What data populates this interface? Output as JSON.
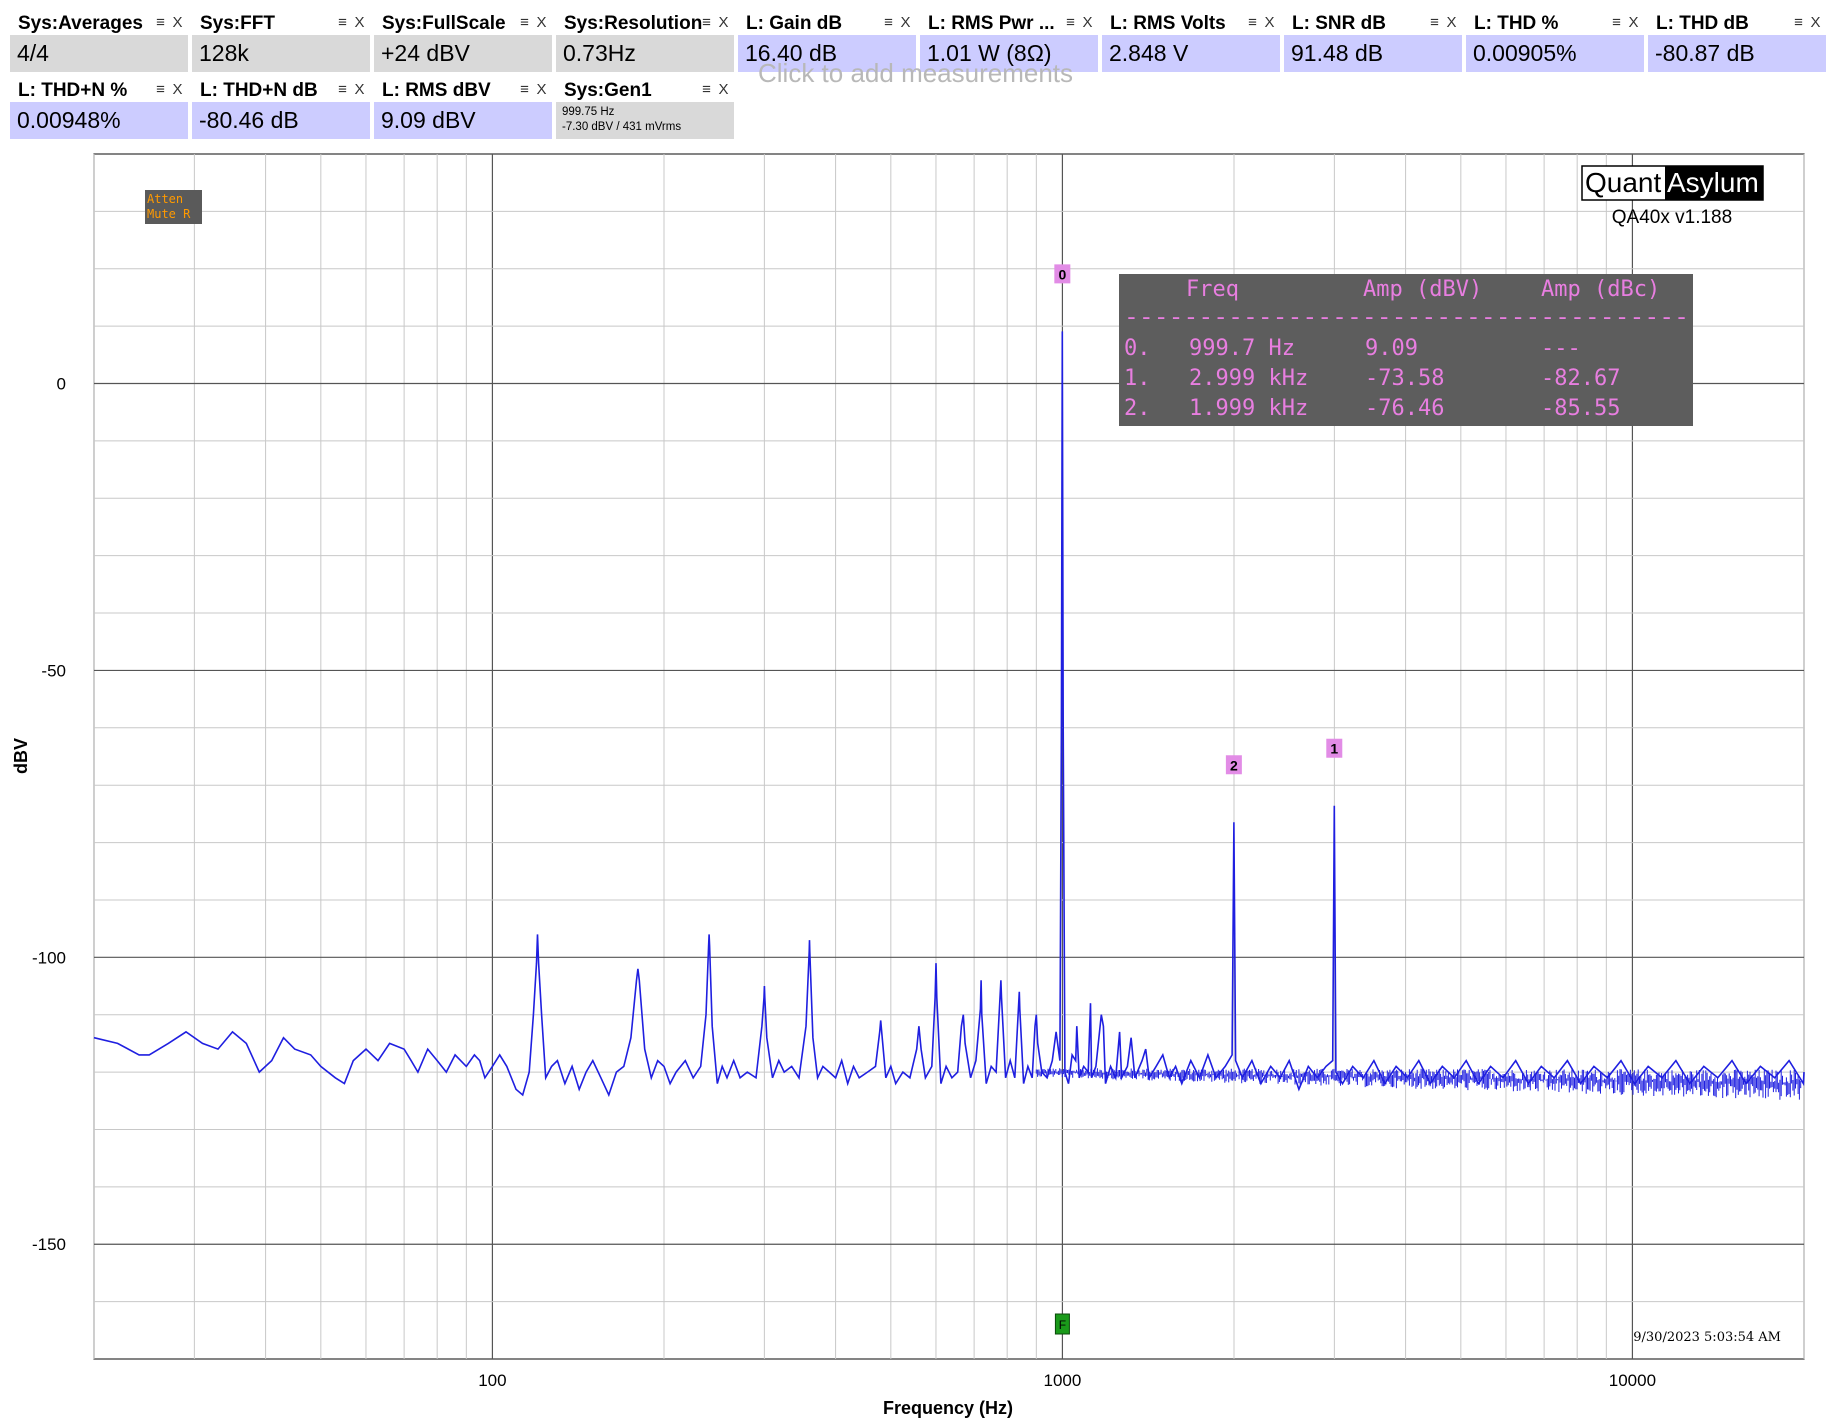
{
  "tiles": [
    {
      "title": "Sys:Averages",
      "value": "4/4",
      "kind": "sys"
    },
    {
      "title": "Sys:FFT",
      "value": "128k",
      "kind": "sys"
    },
    {
      "title": "Sys:FullScale",
      "value": "+24 dBV",
      "kind": "sys"
    },
    {
      "title": "Sys:Resolution",
      "value": "0.73Hz",
      "kind": "sys"
    },
    {
      "title": "L: Gain dB",
      "value": "16.40 dB",
      "kind": "meas"
    },
    {
      "title": "L: RMS Pwr ...",
      "value": "1.01 W (8Ω)",
      "kind": "meas"
    },
    {
      "title": "L: RMS Volts",
      "value": "2.848 V",
      "kind": "meas"
    },
    {
      "title": "L: SNR dB",
      "value": "91.48 dB",
      "kind": "meas"
    },
    {
      "title": "L: THD %",
      "value": "0.00905%",
      "kind": "meas"
    },
    {
      "title": "L: THD dB",
      "value": "-80.87 dB",
      "kind": "meas"
    },
    {
      "title": "L: THD+N %",
      "value": "0.00948%",
      "kind": "meas"
    },
    {
      "title": "L: THD+N dB",
      "value": "-80.46 dB",
      "kind": "meas"
    },
    {
      "title": "L: RMS dBV",
      "value": "9.09 dBV",
      "kind": "meas"
    },
    {
      "title": "Sys:Gen1",
      "value": "",
      "kind": "sys",
      "sub1": "999.75 Hz",
      "sub2": "-7.30 dBV  / 431 mVrms"
    }
  ],
  "tile_icons": {
    "menu": "menu-icon",
    "close": "close-icon"
  },
  "add_measurement_hint": "Click to add measurements",
  "colors": {
    "trace": "#1f1fe0",
    "marker_bg": "#e28ce6",
    "table_bg": "#5d5d5d",
    "table_text": "#e87ee0",
    "sys_tile": "#d9d9d9",
    "meas_tile": "#ccccff",
    "grid": "#c8c8c8",
    "grid_major": "#555555",
    "atten_bg": "#5a5a5a",
    "atten_text": "#ff9a00",
    "fund_marker": "#1a9a1a"
  },
  "atten_badge": {
    "line1": "Atten",
    "line2": "Mute R"
  },
  "brand": {
    "quant": "Quant",
    "asylum": "Asylum",
    "version": "QA40x v1.188"
  },
  "timestamp": "9/30/2023 5:03:54 AM",
  "harmonic_table": {
    "headers": [
      "Freq",
      "Amp (dBV)",
      "Amp (dBc)"
    ],
    "divider": "--------------------------------------",
    "rows": [
      {
        "idx": "0.",
        "freq": "999.7 Hz",
        "dbv": "9.09",
        "dbc": "---"
      },
      {
        "idx": "1.",
        "freq": "2.999 kHz",
        "dbv": "-73.58",
        "dbc": "-82.67"
      },
      {
        "idx": "2.",
        "freq": "1.999 kHz",
        "dbv": "-76.46",
        "dbc": "-85.55"
      }
    ]
  },
  "chart_data": {
    "type": "line",
    "xlabel": "Frequency (Hz)",
    "ylabel": "dBV",
    "x_scale": "log",
    "xlim": [
      20,
      20000
    ],
    "ylim": [
      -170,
      40
    ],
    "y_ticks": [
      0,
      -50,
      -100,
      -150
    ],
    "y_tick_labels": [
      "0",
      "-50",
      "-100",
      "-150"
    ],
    "x_ticks": [
      100,
      1000,
      10000
    ],
    "x_tick_labels": [
      "100",
      "1000",
      "10000"
    ],
    "grid": true,
    "series": [
      {
        "points": [
          [
            20,
            -114
          ],
          [
            22,
            -115
          ],
          [
            24,
            -117
          ],
          [
            25,
            -117
          ],
          [
            27,
            -115
          ],
          [
            29,
            -113
          ],
          [
            31,
            -115
          ],
          [
            33,
            -116
          ],
          [
            35,
            -113
          ],
          [
            37,
            -115
          ],
          [
            39,
            -120
          ],
          [
            41,
            -118
          ],
          [
            43,
            -114
          ],
          [
            45,
            -116
          ],
          [
            48,
            -117
          ],
          [
            50,
            -119
          ],
          [
            53,
            -121
          ],
          [
            55,
            -122
          ],
          [
            57,
            -118
          ],
          [
            60,
            -116
          ],
          [
            63,
            -118
          ],
          [
            66,
            -115
          ],
          [
            70,
            -116
          ],
          [
            72,
            -118
          ],
          [
            74,
            -120
          ],
          [
            77,
            -116
          ],
          [
            80,
            -118
          ],
          [
            83,
            -120
          ],
          [
            86,
            -117
          ],
          [
            90,
            -119
          ],
          [
            93,
            -117
          ],
          [
            95,
            -118
          ],
          [
            97,
            -121
          ],
          [
            100,
            -119
          ],
          [
            103,
            -117
          ],
          [
            106,
            -119
          ],
          [
            110,
            -123
          ],
          [
            113,
            -124
          ],
          [
            116,
            -120
          ],
          [
            118,
            -110
          ],
          [
            119.5,
            -101
          ],
          [
            120,
            -96
          ],
          [
            120.5,
            -101
          ],
          [
            122,
            -110
          ],
          [
            124,
            -121
          ],
          [
            127,
            -119
          ],
          [
            130,
            -118
          ],
          [
            134,
            -122
          ],
          [
            138,
            -119
          ],
          [
            142,
            -123
          ],
          [
            146,
            -120
          ],
          [
            150,
            -118
          ],
          [
            155,
            -121
          ],
          [
            160,
            -124
          ],
          [
            165,
            -120
          ],
          [
            170,
            -119
          ],
          [
            175,
            -114
          ],
          [
            179,
            -104
          ],
          [
            180,
            -102
          ],
          [
            181,
            -104
          ],
          [
            185,
            -116
          ],
          [
            190,
            -121
          ],
          [
            195,
            -118
          ],
          [
            200,
            -119
          ],
          [
            205,
            -122
          ],
          [
            210,
            -120
          ],
          [
            218,
            -118
          ],
          [
            225,
            -121
          ],
          [
            232,
            -119
          ],
          [
            237,
            -110
          ],
          [
            239.5,
            -98
          ],
          [
            240,
            -96
          ],
          [
            240.5,
            -98
          ],
          [
            243,
            -112
          ],
          [
            248,
            -122
          ],
          [
            253,
            -119
          ],
          [
            258,
            -121
          ],
          [
            265,
            -118
          ],
          [
            272,
            -121
          ],
          [
            280,
            -120
          ],
          [
            290,
            -121
          ],
          [
            297,
            -112
          ],
          [
            299.5,
            -107
          ],
          [
            300,
            -105
          ],
          [
            300.5,
            -107
          ],
          [
            303,
            -114
          ],
          [
            310,
            -121
          ],
          [
            318,
            -118
          ],
          [
            325,
            -120
          ],
          [
            335,
            -119
          ],
          [
            345,
            -121
          ],
          [
            355,
            -112
          ],
          [
            359.5,
            -99
          ],
          [
            360,
            -97
          ],
          [
            360.5,
            -99
          ],
          [
            365,
            -114
          ],
          [
            372,
            -121
          ],
          [
            380,
            -119
          ],
          [
            390,
            -120
          ],
          [
            400,
            -121
          ],
          [
            410,
            -118
          ],
          [
            420,
            -122
          ],
          [
            430,
            -119
          ],
          [
            440,
            -121
          ],
          [
            455,
            -120
          ],
          [
            470,
            -119
          ],
          [
            478,
            -113
          ],
          [
            480,
            -111
          ],
          [
            482,
            -113
          ],
          [
            490,
            -121
          ],
          [
            500,
            -119
          ],
          [
            510,
            -122
          ],
          [
            525,
            -120
          ],
          [
            540,
            -121
          ],
          [
            555,
            -116
          ],
          [
            560,
            -112
          ],
          [
            565,
            -116
          ],
          [
            575,
            -121
          ],
          [
            590,
            -119
          ],
          [
            598,
            -107
          ],
          [
            600,
            -101
          ],
          [
            602,
            -107
          ],
          [
            612,
            -122
          ],
          [
            625,
            -119
          ],
          [
            640,
            -121
          ],
          [
            655,
            -120
          ],
          [
            665,
            -112
          ],
          [
            670,
            -110
          ],
          [
            675,
            -115
          ],
          [
            690,
            -121
          ],
          [
            705,
            -118
          ],
          [
            718,
            -109
          ],
          [
            720,
            -104
          ],
          [
            722,
            -110
          ],
          [
            735,
            -122
          ],
          [
            750,
            -119
          ],
          [
            765,
            -120
          ],
          [
            778,
            -106
          ],
          [
            780,
            -104
          ],
          [
            782,
            -107
          ],
          [
            795,
            -121
          ],
          [
            810,
            -118
          ],
          [
            825,
            -121
          ],
          [
            838,
            -108
          ],
          [
            840,
            -106
          ],
          [
            842,
            -109
          ],
          [
            855,
            -122
          ],
          [
            870,
            -119
          ],
          [
            885,
            -121
          ],
          [
            895,
            -112
          ],
          [
            900,
            -110
          ],
          [
            905,
            -115
          ],
          [
            920,
            -120
          ],
          [
            940,
            -121
          ],
          [
            960,
            -118
          ],
          [
            975,
            -113
          ],
          [
            990,
            -118
          ],
          [
            996,
            -60
          ],
          [
            999.7,
            9.09
          ],
          [
            1003,
            -60
          ],
          [
            1010,
            -120
          ],
          [
            1025,
            -122
          ],
          [
            1040,
            -117
          ],
          [
            1055,
            -118
          ],
          [
            1060,
            -112
          ],
          [
            1070,
            -121
          ],
          [
            1090,
            -119
          ],
          [
            1110,
            -120
          ],
          [
            1120,
            -108
          ],
          [
            1125,
            -121
          ],
          [
            1145,
            -119
          ],
          [
            1170,
            -110
          ],
          [
            1180,
            -112
          ],
          [
            1190,
            -122
          ],
          [
            1215,
            -119
          ],
          [
            1240,
            -121
          ],
          [
            1260,
            -113
          ],
          [
            1270,
            -121
          ],
          [
            1300,
            -119
          ],
          [
            1320,
            -114
          ],
          [
            1340,
            -121
          ],
          [
            1380,
            -118
          ],
          [
            1400,
            -116
          ],
          [
            1420,
            -121
          ],
          [
            1460,
            -119
          ],
          [
            1500,
            -117
          ],
          [
            1540,
            -121
          ],
          [
            1580,
            -119
          ],
          [
            1620,
            -122
          ],
          [
            1680,
            -118
          ],
          [
            1740,
            -121
          ],
          [
            1800,
            -117
          ],
          [
            1860,
            -121
          ],
          [
            1930,
            -119
          ],
          [
            1985,
            -117
          ],
          [
            1999,
            -76.46
          ],
          [
            2013,
            -118
          ],
          [
            2070,
            -121
          ],
          [
            2150,
            -118
          ],
          [
            2230,
            -122
          ],
          [
            2320,
            -119
          ],
          [
            2410,
            -121
          ],
          [
            2500,
            -118
          ],
          [
            2600,
            -123
          ],
          [
            2700,
            -119
          ],
          [
            2800,
            -121
          ],
          [
            2900,
            -119
          ],
          [
            2980,
            -118
          ],
          [
            2999,
            -73.58
          ],
          [
            3018,
            -120
          ],
          [
            3100,
            -122
          ],
          [
            3230,
            -119
          ],
          [
            3370,
            -121
          ],
          [
            3520,
            -118
          ],
          [
            3680,
            -122
          ],
          [
            3850,
            -119
          ],
          [
            4030,
            -121
          ],
          [
            4220,
            -118
          ],
          [
            4420,
            -122
          ],
          [
            4640,
            -119
          ],
          [
            4870,
            -121
          ],
          [
            5110,
            -118
          ],
          [
            5370,
            -122
          ],
          [
            5640,
            -119
          ],
          [
            5930,
            -121
          ],
          [
            6240,
            -118
          ],
          [
            6570,
            -122
          ],
          [
            6920,
            -119
          ],
          [
            7290,
            -121
          ],
          [
            7690,
            -118
          ],
          [
            8110,
            -122
          ],
          [
            8560,
            -119
          ],
          [
            9040,
            -121
          ],
          [
            9550,
            -118
          ],
          [
            10090,
            -122
          ],
          [
            10660,
            -119
          ],
          [
            11270,
            -121
          ],
          [
            11920,
            -118
          ],
          [
            12610,
            -122
          ],
          [
            13340,
            -119
          ],
          [
            14120,
            -121
          ],
          [
            14950,
            -118
          ],
          [
            15830,
            -122
          ],
          [
            16770,
            -119
          ],
          [
            17770,
            -121
          ],
          [
            18830,
            -118
          ],
          [
            19950,
            -122
          ],
          [
            20000,
            -120
          ]
        ]
      }
    ],
    "markers": [
      {
        "label": "0",
        "x": 999.7,
        "y": 9.09
      },
      {
        "label": "1",
        "x": 2999,
        "y": -73.58
      },
      {
        "label": "2",
        "x": 1999,
        "y": -76.46
      }
    ],
    "fundamental_marker": {
      "label": "F",
      "x": 1000
    }
  }
}
